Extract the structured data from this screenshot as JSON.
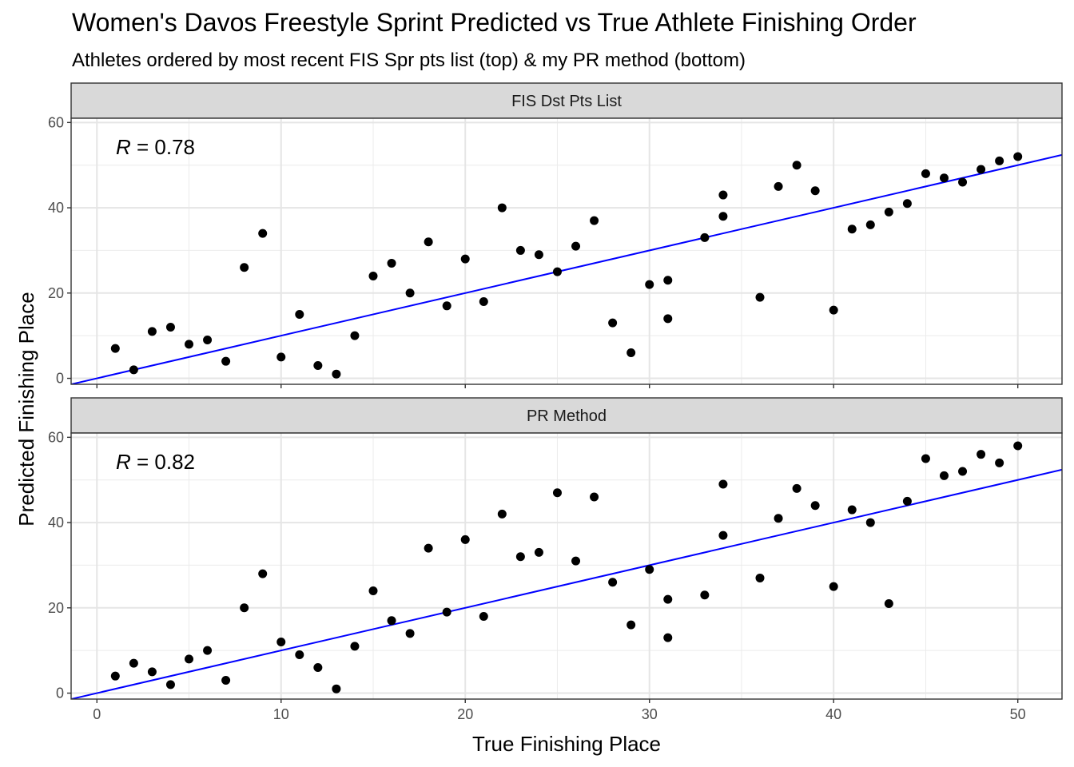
{
  "chart_data": {
    "type": "scatter",
    "title": "Women's Davos Freestyle Sprint Predicted vs True Athlete Finishing Order",
    "subtitle": "Athletes ordered by most recent FIS Spr pts list (top) & my PR method (bottom)",
    "xlabel": "True Finishing Place",
    "ylabel": "Predicted Finishing Place",
    "xlim": [
      -1.4,
      52.4
    ],
    "ylim": [
      -1.4,
      61.0
    ],
    "x_ticks": [
      0,
      10,
      20,
      30,
      40,
      50
    ],
    "y_ticks": [
      0,
      20,
      40,
      60
    ],
    "grid": true,
    "trend_color": "#0000ff",
    "point_color": "#000000",
    "panels": [
      {
        "strip": "FIS Dst Pts List",
        "r_label": "R",
        "r_value": " = 0.78",
        "trendline": [
          [
            -1.4,
            -1.4
          ],
          [
            52.4,
            52.4
          ]
        ],
        "points": [
          [
            1,
            7
          ],
          [
            2,
            2
          ],
          [
            3,
            11
          ],
          [
            4,
            12
          ],
          [
            5,
            8
          ],
          [
            6,
            9
          ],
          [
            7,
            4
          ],
          [
            8,
            26
          ],
          [
            9,
            34
          ],
          [
            10,
            5
          ],
          [
            11,
            15
          ],
          [
            12,
            3
          ],
          [
            13,
            1
          ],
          [
            14,
            10
          ],
          [
            15,
            24
          ],
          [
            16,
            27
          ],
          [
            17,
            20
          ],
          [
            18,
            32
          ],
          [
            19,
            17
          ],
          [
            20,
            28
          ],
          [
            21,
            18
          ],
          [
            22,
            40
          ],
          [
            23,
            30
          ],
          [
            24,
            29
          ],
          [
            25,
            25
          ],
          [
            26,
            31
          ],
          [
            27,
            37
          ],
          [
            28,
            13
          ],
          [
            29,
            6
          ],
          [
            30,
            22
          ],
          [
            31,
            23
          ],
          [
            31,
            14
          ],
          [
            33,
            33
          ],
          [
            34,
            43
          ],
          [
            34,
            38
          ],
          [
            36,
            19
          ],
          [
            37,
            45
          ],
          [
            38,
            50
          ],
          [
            39,
            44
          ],
          [
            40,
            16
          ],
          [
            41,
            35
          ],
          [
            42,
            36
          ],
          [
            43,
            39
          ],
          [
            44,
            41
          ],
          [
            45,
            48
          ],
          [
            46,
            47
          ],
          [
            47,
            46
          ],
          [
            48,
            49
          ],
          [
            49,
            51
          ],
          [
            50,
            52
          ]
        ]
      },
      {
        "strip": "PR Method",
        "r_label": "R",
        "r_value": " = 0.82",
        "trendline": [
          [
            -1.4,
            -1.4
          ],
          [
            52.4,
            52.4
          ]
        ],
        "points": [
          [
            1,
            4
          ],
          [
            2,
            7
          ],
          [
            3,
            5
          ],
          [
            4,
            2
          ],
          [
            5,
            8
          ],
          [
            6,
            10
          ],
          [
            7,
            3
          ],
          [
            8,
            20
          ],
          [
            9,
            28
          ],
          [
            10,
            12
          ],
          [
            11,
            9
          ],
          [
            12,
            6
          ],
          [
            13,
            1
          ],
          [
            14,
            11
          ],
          [
            15,
            24
          ],
          [
            16,
            17
          ],
          [
            17,
            14
          ],
          [
            18,
            34
          ],
          [
            19,
            19
          ],
          [
            20,
            36
          ],
          [
            21,
            18
          ],
          [
            22,
            42
          ],
          [
            23,
            32
          ],
          [
            24,
            33
          ],
          [
            25,
            47
          ],
          [
            26,
            31
          ],
          [
            27,
            46
          ],
          [
            28,
            26
          ],
          [
            29,
            16
          ],
          [
            30,
            29
          ],
          [
            31,
            22
          ],
          [
            31,
            13
          ],
          [
            33,
            23
          ],
          [
            34,
            49
          ],
          [
            34,
            37
          ],
          [
            36,
            27
          ],
          [
            37,
            41
          ],
          [
            38,
            48
          ],
          [
            39,
            44
          ],
          [
            40,
            25
          ],
          [
            41,
            43
          ],
          [
            42,
            40
          ],
          [
            43,
            21
          ],
          [
            44,
            45
          ],
          [
            45,
            55
          ],
          [
            46,
            51
          ],
          [
            47,
            52
          ],
          [
            48,
            56
          ],
          [
            49,
            54
          ],
          [
            50,
            58
          ]
        ]
      }
    ]
  }
}
